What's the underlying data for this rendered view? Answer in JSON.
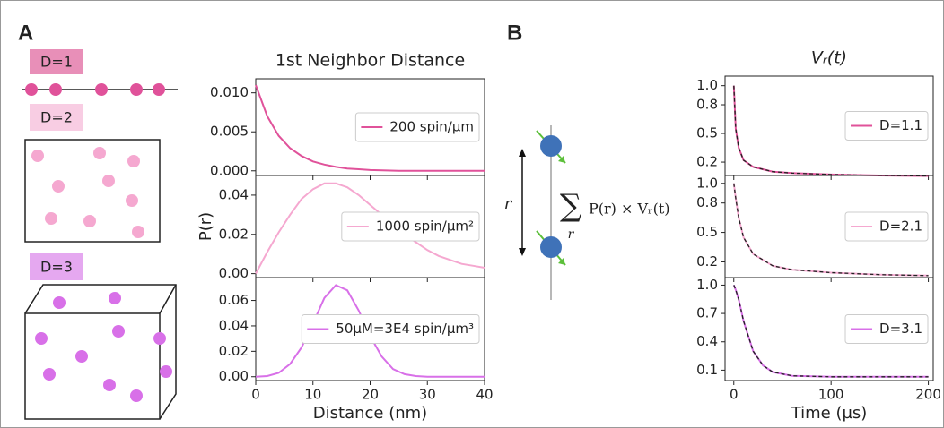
{
  "panel_a": {
    "letter": "A",
    "labels": [
      "D=1",
      "D=2",
      "D=3"
    ]
  },
  "panel_b": {
    "letter": "B",
    "distance_label": "r",
    "sum_symbol": "∑",
    "sum_index": "r",
    "sum_term": "P(r) × Vᵣ(t)"
  },
  "chart_data": [
    {
      "type": "line",
      "title": "1st Neighbor Distance",
      "x": [
        0,
        2,
        4,
        6,
        8,
        10,
        12,
        14,
        16,
        18,
        20,
        25,
        30,
        35,
        40
      ],
      "series": [
        {
          "name": "200 spin/µm",
          "color": "#e0529a",
          "values": [
            0.011,
            0.007,
            0.0045,
            0.0029,
            0.0019,
            0.0012,
            0.0008,
            0.0005,
            0.0003,
            0.0002,
            0.0001,
            0,
            0,
            0,
            0
          ]
        }
      ],
      "xlim": [
        0,
        40
      ],
      "xticks": [
        0,
        10,
        20,
        30,
        40
      ],
      "ylim": [
        -0.0006,
        0.0118
      ],
      "yticks": [
        {
          "value": 0,
          "label": "0.000"
        },
        0.005,
        {
          "value": 0.01,
          "label": "0.010"
        }
      ]
    },
    {
      "type": "line",
      "ylabel": "P(r)",
      "x": [
        0,
        2,
        4,
        6,
        8,
        10,
        12,
        14,
        16,
        18,
        20,
        22,
        24,
        26,
        28,
        30,
        32,
        34,
        36,
        38,
        40
      ],
      "series": [
        {
          "name": "1000 spin/µm²",
          "color": "#f5a8d0",
          "values": [
            0,
            0.011,
            0.021,
            0.03,
            0.038,
            0.043,
            0.046,
            0.046,
            0.044,
            0.04,
            0.035,
            0.03,
            0.025,
            0.02,
            0.016,
            0.012,
            0.009,
            0.007,
            0.005,
            0.004,
            0.003
          ]
        }
      ],
      "xlim": [
        0,
        40
      ],
      "xticks": [
        0,
        10,
        20,
        30,
        40
      ],
      "ylim": [
        -0.002,
        0.05
      ],
      "yticks": [
        {
          "value": 0,
          "label": "0.00"
        },
        0.02,
        0.04
      ]
    },
    {
      "type": "line",
      "xlabel": "Distance (nm)",
      "x": [
        0,
        2,
        4,
        6,
        8,
        10,
        12,
        14,
        16,
        18,
        20,
        22,
        24,
        26,
        28,
        30,
        35,
        40
      ],
      "series": [
        {
          "name": "50µM=3E4 spin/µm³",
          "color": "#d870e8",
          "values": [
            0,
            0.0005,
            0.003,
            0.01,
            0.023,
            0.042,
            0.062,
            0.072,
            0.068,
            0.052,
            0.032,
            0.016,
            0.006,
            0.002,
            0.0005,
            0,
            0,
            0
          ]
        }
      ],
      "xlim": [
        0,
        40
      ],
      "xticks": [
        0,
        10,
        20,
        30,
        40
      ],
      "ylim": [
        -0.003,
        0.078
      ],
      "yticks": [
        {
          "value": 0,
          "label": "0.00"
        },
        0.02,
        0.04,
        0.06
      ]
    },
    {
      "type": "line",
      "title": "Vᵣ(t)",
      "overlay_color": "#222222",
      "x": [
        0,
        2,
        5,
        10,
        20,
        40,
        60,
        100,
        150,
        200
      ],
      "series": [
        {
          "name": "D=1.1",
          "color": "#e0529a",
          "values": [
            1.0,
            0.55,
            0.35,
            0.22,
            0.15,
            0.1,
            0.085,
            0.07,
            0.06,
            0.055
          ]
        }
      ],
      "xlim": [
        -9,
        205
      ],
      "xticks": [
        0,
        100,
        200
      ],
      "ylim": [
        0.06,
        1.1
      ],
      "yticks": [
        {
          "value": 1,
          "label": "1.0"
        },
        0.8,
        0.5,
        0.2
      ]
    },
    {
      "type": "line",
      "overlay_color": "#222222",
      "x": [
        0,
        2,
        5,
        10,
        20,
        40,
        60,
        100,
        150,
        200
      ],
      "series": [
        {
          "name": "D=2.1",
          "color": "#f5a8d0",
          "values": [
            1.0,
            0.85,
            0.65,
            0.45,
            0.28,
            0.16,
            0.12,
            0.09,
            0.07,
            0.06
          ]
        }
      ],
      "xlim": [
        -9,
        205
      ],
      "xticks": [
        0,
        100,
        200
      ],
      "ylim": [
        0.04,
        1.08
      ],
      "yticks": [
        {
          "value": 1,
          "label": "1.0"
        },
        0.8,
        0.5,
        0.2
      ]
    },
    {
      "type": "line",
      "overlay_color": "#222222",
      "xlabel": "Time (µs)",
      "x": [
        0,
        2,
        5,
        10,
        20,
        30,
        40,
        60,
        100,
        150,
        200
      ],
      "series": [
        {
          "name": "D=3.1",
          "color": "#d870e8",
          "values": [
            1.0,
            0.95,
            0.85,
            0.62,
            0.3,
            0.15,
            0.08,
            0.04,
            0.03,
            0.03,
            0.03
          ]
        }
      ],
      "xlim": [
        -9,
        205
      ],
      "xticks": [
        0,
        100,
        200
      ],
      "ylim": [
        -0.01,
        1.08
      ],
      "yticks": [
        {
          "value": 1,
          "label": "1.0"
        },
        0.7,
        0.4,
        0.1
      ]
    }
  ]
}
